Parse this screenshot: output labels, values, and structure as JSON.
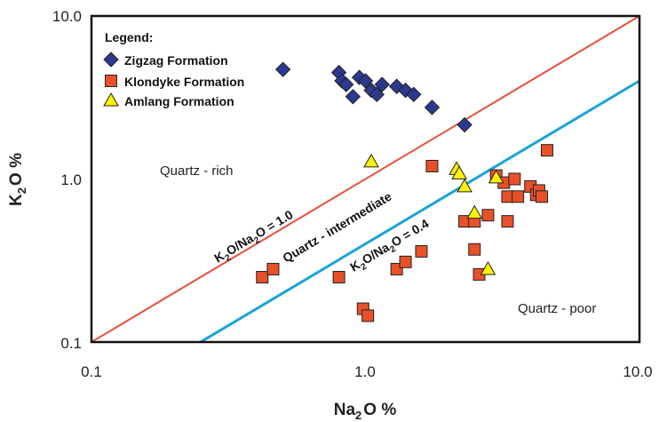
{
  "chart_data": {
    "type": "scatter",
    "x_scale": "log",
    "y_scale": "log",
    "xlim": [
      0.1,
      10.0
    ],
    "ylim": [
      0.1,
      10.0
    ],
    "xticks": [
      "0.1",
      "1.0",
      "10.0"
    ],
    "yticks": [
      "10.0",
      "1.0",
      "0.1"
    ],
    "xlabel_main": "Na",
    "xlabel_sub": "2",
    "xlabel_rest": "O %",
    "ylabel_main": "K",
    "ylabel_sub": "2",
    "ylabel_rest": "O %",
    "legend_title": "Legend:",
    "legend_position": "top-left",
    "series": [
      {
        "name": "Zigzag Formation",
        "marker": "diamond",
        "color": "#2b3990",
        "points": [
          [
            0.5,
            4.7
          ],
          [
            0.8,
            4.5
          ],
          [
            0.82,
            4.0
          ],
          [
            0.85,
            3.8
          ],
          [
            0.9,
            3.2
          ],
          [
            0.95,
            4.2
          ],
          [
            1.0,
            4.0
          ],
          [
            1.05,
            3.5
          ],
          [
            1.1,
            3.3
          ],
          [
            1.15,
            3.8
          ],
          [
            1.3,
            3.7
          ],
          [
            1.4,
            3.5
          ],
          [
            1.5,
            3.3
          ],
          [
            1.75,
            2.75
          ],
          [
            2.3,
            2.15
          ]
        ]
      },
      {
        "name": "Klondyke Formation",
        "marker": "square",
        "color": "#e8502a",
        "points": [
          [
            0.42,
            0.25
          ],
          [
            0.46,
            0.28
          ],
          [
            0.8,
            0.25
          ],
          [
            0.98,
            0.16
          ],
          [
            1.02,
            0.145
          ],
          [
            1.3,
            0.28
          ],
          [
            1.4,
            0.31
          ],
          [
            1.6,
            0.36
          ],
          [
            1.75,
            1.2
          ],
          [
            2.3,
            0.55
          ],
          [
            2.5,
            0.55
          ],
          [
            2.5,
            0.37
          ],
          [
            2.6,
            0.26
          ],
          [
            2.8,
            0.6
          ],
          [
            3.0,
            1.05
          ],
          [
            3.2,
            0.95
          ],
          [
            3.3,
            0.55
          ],
          [
            3.3,
            0.78
          ],
          [
            3.5,
            1.0
          ],
          [
            3.6,
            0.78
          ],
          [
            4.0,
            0.9
          ],
          [
            4.2,
            0.8
          ],
          [
            4.3,
            0.85
          ],
          [
            4.4,
            0.78
          ],
          [
            4.6,
            1.5
          ]
        ]
      },
      {
        "name": "Amlang Formation",
        "marker": "triangle",
        "color": "#fff200",
        "points": [
          [
            1.05,
            1.28
          ],
          [
            2.15,
            1.15
          ],
          [
            2.2,
            1.08
          ],
          [
            2.3,
            0.9
          ],
          [
            2.5,
            0.62
          ],
          [
            2.8,
            0.28
          ],
          [
            3.0,
            1.02
          ]
        ]
      }
    ],
    "ratio_lines": [
      {
        "ratio": 1.0,
        "color": "#e8503a",
        "label_main": "K",
        "label_sub1": "2",
        "label_mid": "O/Na",
        "label_sub2": "2",
        "label_end": "O = 1.0"
      },
      {
        "ratio": 0.4,
        "color": "#1aa3d8",
        "label_main": "K",
        "label_sub1": "2",
        "label_mid": "O/Na",
        "label_sub2": "2",
        "label_end": "O = 0.4"
      }
    ],
    "regions": {
      "rich": "Quartz - rich",
      "intermediate": "Quartz - intermediate",
      "poor": "Quartz - poor"
    }
  }
}
